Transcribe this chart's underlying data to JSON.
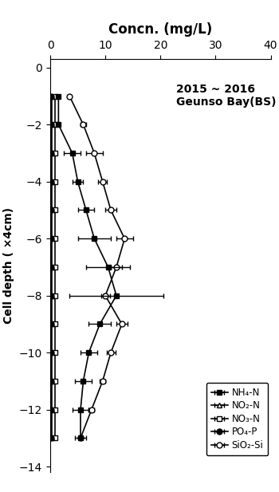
{
  "title": "Concn. (mg/L)",
  "annotation": "2015 ~ 2016\nGeunso Bay(BS)",
  "ylabel": "Cell depth ( ×4cm)",
  "xlim": [
    0,
    40
  ],
  "ylim": [
    -14.2,
    0.3
  ],
  "xticks": [
    0,
    10,
    20,
    30,
    40
  ],
  "yticks": [
    0,
    -2,
    -4,
    -6,
    -8,
    -10,
    -12,
    -14
  ],
  "depths": [
    -1,
    -2,
    -3,
    -4,
    -5,
    -6,
    -7,
    -8,
    -9,
    -10,
    -11,
    -12,
    -13
  ],
  "NH4_N": [
    1.5,
    1.5,
    4.0,
    5.0,
    6.5,
    8.0,
    10.5,
    12.0,
    9.0,
    7.0,
    6.0,
    5.5,
    5.5
  ],
  "NH4_N_err": [
    0.3,
    0.3,
    1.5,
    1.0,
    1.5,
    3.0,
    4.0,
    8.5,
    2.0,
    1.5,
    1.5,
    1.5,
    1.0
  ],
  "NO2_N": [
    0.3,
    0.3,
    0.3,
    0.3,
    0.3,
    0.3,
    0.3,
    0.3,
    0.3,
    0.3,
    0.3,
    0.3,
    0.3
  ],
  "NO2_N_err": [
    0.05,
    0.05,
    0.05,
    0.05,
    0.05,
    0.05,
    0.05,
    0.05,
    0.05,
    0.05,
    0.05,
    0.05,
    0.05
  ],
  "NO3_N": [
    0.8,
    0.8,
    0.8,
    0.8,
    0.8,
    0.8,
    0.8,
    0.8,
    0.8,
    0.8,
    0.8,
    0.8,
    0.8
  ],
  "NO3_N_err": [
    0.1,
    0.1,
    0.1,
    0.1,
    0.1,
    0.1,
    0.1,
    0.1,
    0.1,
    0.1,
    0.1,
    0.1,
    0.1
  ],
  "PO4_P": [
    0.2,
    0.2,
    0.2,
    0.2,
    0.2,
    0.2,
    0.2,
    0.2,
    0.2,
    0.2,
    0.2,
    0.2,
    0.2
  ],
  "PO4_P_err": [
    0.05,
    0.05,
    0.05,
    0.05,
    0.05,
    0.05,
    0.05,
    0.05,
    0.05,
    0.05,
    0.05,
    0.05,
    0.05
  ],
  "SiO2_Si": [
    3.5,
    6.0,
    8.0,
    9.5,
    11.0,
    13.5,
    12.0,
    10.0,
    13.0,
    11.0,
    9.5,
    7.5,
    5.5
  ],
  "SiO2_Si_err": [
    0.3,
    0.5,
    1.5,
    0.8,
    1.0,
    1.5,
    1.0,
    0.8,
    1.0,
    0.8,
    0.5,
    0.5,
    0.3
  ],
  "legend_labels": [
    "NH₄-N",
    "NO₂-N",
    "NO₃-N",
    "PO₄-P",
    "SiO₂-Si"
  ],
  "figsize": [
    3.5,
    6.17
  ],
  "dpi": 100
}
